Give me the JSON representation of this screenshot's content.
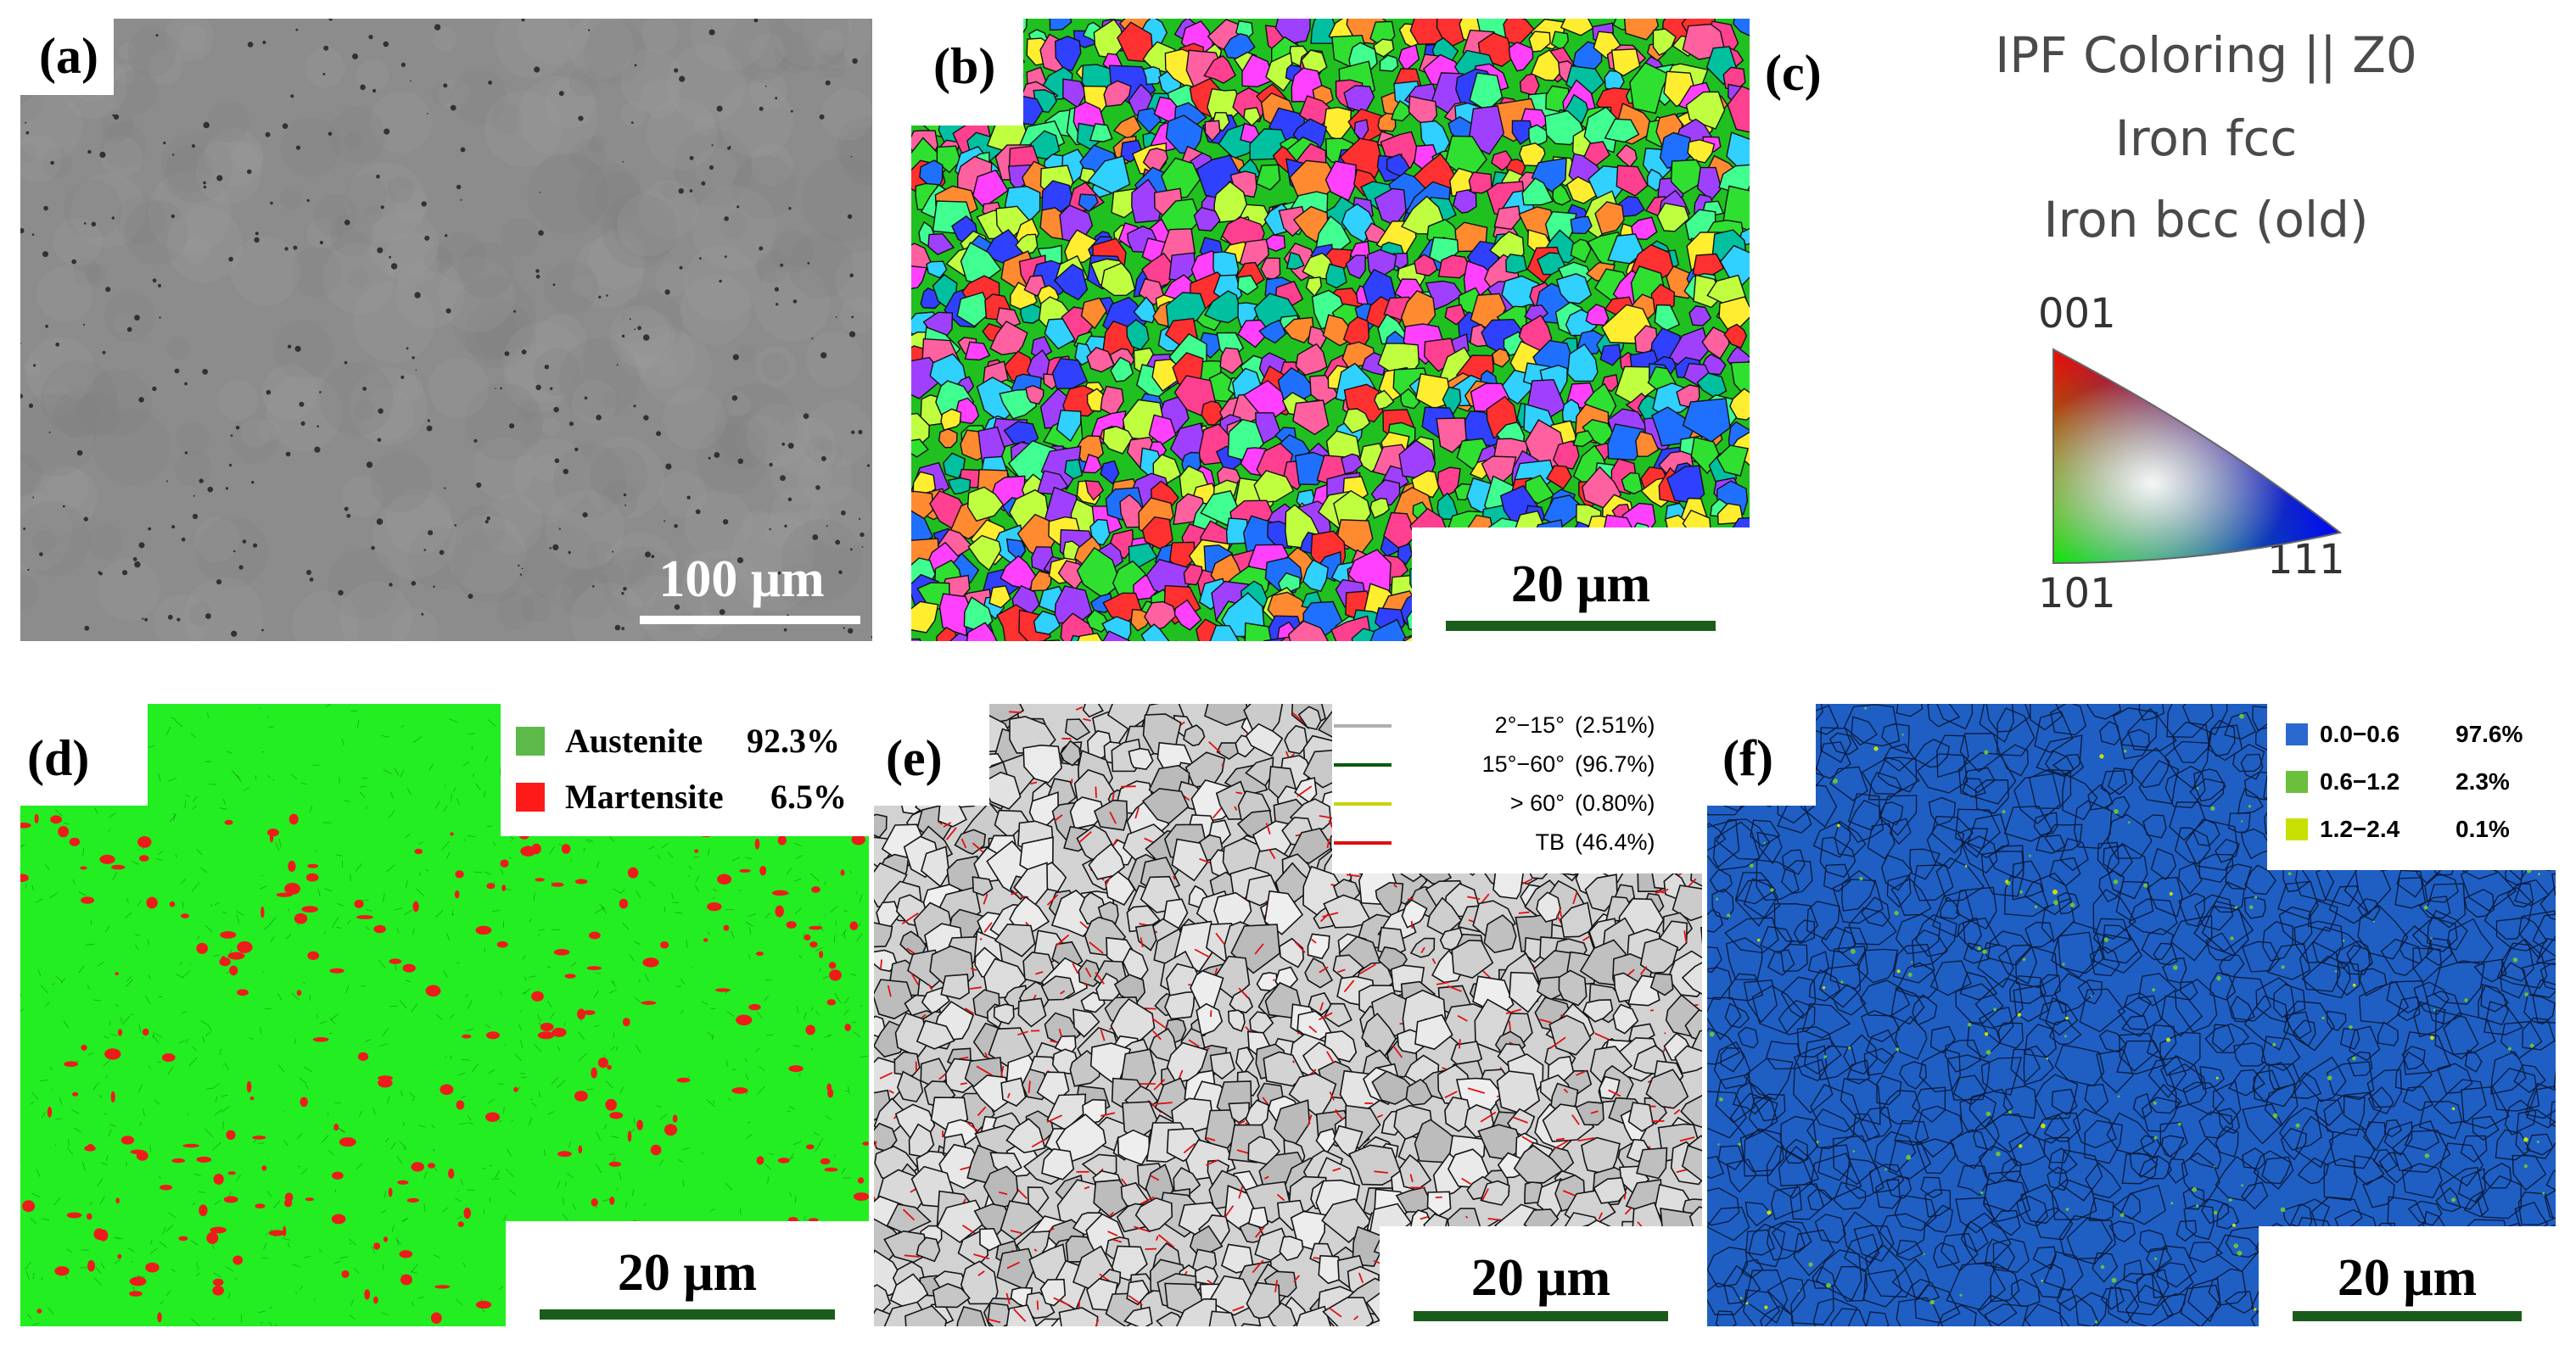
{
  "figure": {
    "panels": [
      {
        "id": "a",
        "label": "(a)",
        "scale_bar": "100 μm",
        "bar_color": "#ffffff"
      },
      {
        "id": "b",
        "label": "(b)",
        "scale_bar": "20 μm",
        "bar_color": "#1a5d1a"
      },
      {
        "id": "c",
        "label": "(c)"
      },
      {
        "id": "d",
        "label": "(d)",
        "scale_bar": "20 μm",
        "bar_color": "#1a5d1a"
      },
      {
        "id": "e",
        "label": "(e)",
        "scale_bar": "20 μm",
        "bar_color": "#1a5d1a"
      },
      {
        "id": "f",
        "label": "(f)",
        "scale_bar": "20 μm",
        "bar_color": "#1a5d1a"
      }
    ],
    "ipf": {
      "title_lines": [
        "IPF Coloring || Z0",
        "Iron fcc",
        "Iron bcc (old)"
      ],
      "corner_001": "001",
      "corner_101": "101",
      "corner_111": "111"
    },
    "phase_legend": [
      {
        "name": "Austenite",
        "percent": "92.3%",
        "color": "#5cb94a"
      },
      {
        "name": "Martensite",
        "percent": "6.5%",
        "color": "#ff1a1a"
      }
    ],
    "boundary_legend": [
      {
        "range": "2°−15°",
        "percent": "(2.51%)",
        "color": "#b0b0b0"
      },
      {
        "range": "15°−60°",
        "percent": "(96.7%)",
        "color": "#0b5a0b"
      },
      {
        "range": "> 60°",
        "percent": "(0.80%)",
        "color": "#c8d400"
      },
      {
        "range": "TB",
        "percent": "(46.4%)",
        "color": "#e01010"
      }
    ],
    "kam_legend": [
      {
        "range": "0.0−0.6",
        "percent": "97.6%",
        "color": "#2a6ad0"
      },
      {
        "range": "0.6−1.2",
        "percent": "2.3%",
        "color": "#6abf3c"
      },
      {
        "range": "1.2−2.4",
        "percent": "0.1%",
        "color": "#c8e000"
      }
    ],
    "map_colors": {
      "sem_gray": "#8c8c8c",
      "phase_green": "#22ee22",
      "phase_red": "#ee1b1b",
      "band_gray": "#d2d2d2",
      "kam_blue": "#1f5fc4"
    }
  }
}
